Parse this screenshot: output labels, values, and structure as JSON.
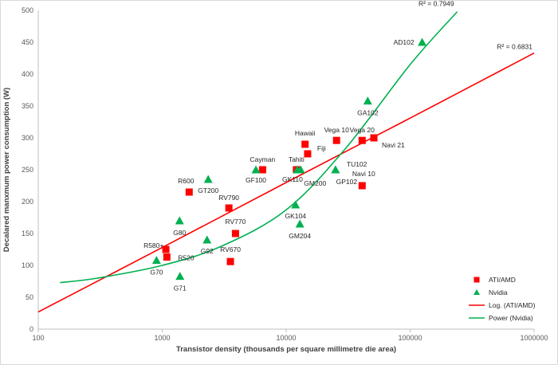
{
  "chart_data": {
    "type": "scatter",
    "xlabel": "Transistor density (thousands per square millimetre die area)",
    "ylabel": "Decalared manxmum power consumption (W)",
    "xscale": "log",
    "xlim": [
      100,
      1000000
    ],
    "ylim": [
      0,
      500
    ],
    "x_ticks": [
      "100",
      "1000",
      "10000",
      "100000",
      "1000000"
    ],
    "y_ticks": [
      "0",
      "50",
      "100",
      "150",
      "200",
      "250",
      "300",
      "350",
      "400",
      "450",
      "500"
    ],
    "grid": false,
    "legend_position": "bottom-right",
    "series": [
      {
        "name": "ATI/AMD",
        "marker": "square",
        "color": "#ff0000",
        "points": [
          {
            "label": "R580+",
            "x": 1070,
            "y": 125
          },
          {
            "label": "R520",
            "x": 1090,
            "y": 113
          },
          {
            "label": "R600",
            "x": 1650,
            "y": 215
          },
          {
            "label": "RV790",
            "x": 3450,
            "y": 190
          },
          {
            "label": "RV770",
            "x": 3900,
            "y": 150
          },
          {
            "label": "RV670",
            "x": 3550,
            "y": 106
          },
          {
            "label": "Cayman",
            "x": 6450,
            "y": 250
          },
          {
            "label": "Tahiti",
            "x": 12100,
            "y": 250
          },
          {
            "label": "Hawaii",
            "x": 14200,
            "y": 290
          },
          {
            "label": "Fiji",
            "x": 14900,
            "y": 275
          },
          {
            "label": "Vega 10",
            "x": 25500,
            "y": 296
          },
          {
            "label": "Vega 20",
            "x": 41000,
            "y": 296
          },
          {
            "label": "Navi 21",
            "x": 51000,
            "y": 300
          },
          {
            "label": "Navi 10",
            "x": 41000,
            "y": 225
          }
        ]
      },
      {
        "name": "Nvidia",
        "marker": "triangle",
        "color": "#00b050",
        "points": [
          {
            "label": "G70",
            "x": 900,
            "y": 108
          },
          {
            "label": "G71",
            "x": 1390,
            "y": 83
          },
          {
            "label": "G80",
            "x": 1380,
            "y": 170
          },
          {
            "label": "GT200",
            "x": 2350,
            "y": 235
          },
          {
            "label": "G92",
            "x": 2300,
            "y": 140
          },
          {
            "label": "GF100",
            "x": 5700,
            "y": 250
          },
          {
            "label": "GK110",
            "x": 12300,
            "y": 250
          },
          {
            "label": "GM200",
            "x": 13100,
            "y": 250
          },
          {
            "label": "GK104",
            "x": 11900,
            "y": 195
          },
          {
            "label": "GM204",
            "x": 12900,
            "y": 165
          },
          {
            "label": "TU102",
            "x": 25000,
            "y": 250
          },
          {
            "label": "GP102",
            "x": 25000,
            "y": 250
          },
          {
            "label": "GA102",
            "x": 45500,
            "y": 358
          },
          {
            "label": "AD102",
            "x": 125000,
            "y": 450
          }
        ]
      }
    ],
    "trendlines": [
      {
        "name": "Log. (ATI/AMD)",
        "color": "#ff0000",
        "r2_label": "R² = 0.6831",
        "points": [
          [
            100,
            27
          ],
          [
            1000,
            128
          ],
          [
            10000,
            230
          ],
          [
            100000,
            331
          ],
          [
            1000000,
            433
          ]
        ]
      },
      {
        "name": "Power (Nvidia)",
        "color": "#00b050",
        "r2_label": "R² = 0.7949",
        "points": [
          [
            150,
            73
          ],
          [
            300,
            80
          ],
          [
            1000,
            100
          ],
          [
            3000,
            130
          ],
          [
            10000,
            187
          ],
          [
            30000,
            283
          ],
          [
            100000,
            415
          ],
          [
            240000,
            498
          ]
        ]
      }
    ]
  }
}
